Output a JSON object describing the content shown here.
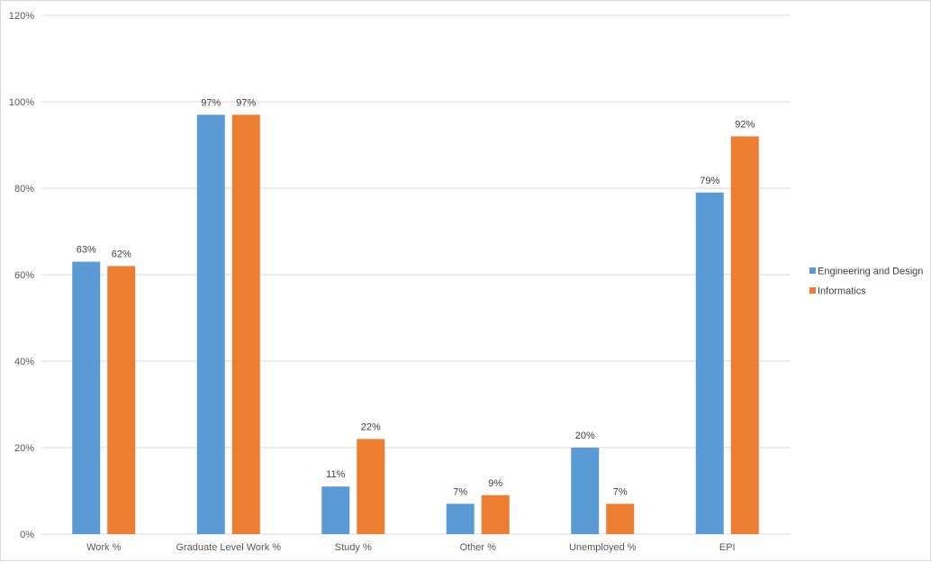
{
  "chart_data": {
    "type": "bar",
    "title": "",
    "xlabel": "",
    "ylabel": "",
    "categories": [
      "Work %",
      "Graduate Level Work %",
      "Study %",
      "Other %",
      "Unemployed %",
      "EPI"
    ],
    "series": [
      {
        "name": "Engineering and Design",
        "color": "#5B9BD5",
        "values": [
          63,
          97,
          11,
          7,
          20,
          79
        ],
        "labels": [
          "63%",
          "97%",
          "11%",
          "7%",
          "20%",
          "79%"
        ]
      },
      {
        "name": "Informatics",
        "color": "#ED7D31",
        "values": [
          62,
          97,
          22,
          9,
          7,
          92
        ],
        "labels": [
          "62%",
          "97%",
          "22%",
          "9%",
          "7%",
          "92%"
        ]
      }
    ],
    "ylim": [
      0,
      120
    ],
    "yticks": [
      0,
      20,
      40,
      60,
      80,
      100,
      120
    ],
    "ytick_labels": [
      "0%",
      "20%",
      "40%",
      "60%",
      "80%",
      "100%",
      "120%"
    ],
    "grid": true,
    "gridline_color": "#D9D9D9",
    "legend_position": "right"
  }
}
